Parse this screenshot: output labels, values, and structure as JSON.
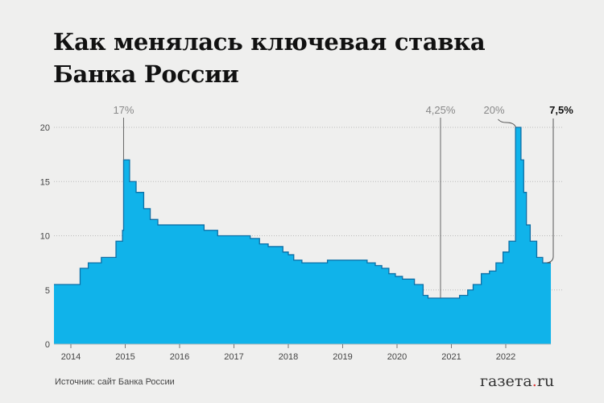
{
  "title": {
    "line1": "Как менялась ключевая ставка",
    "line2": "Банка России"
  },
  "source": "Источник: сайт Банка России",
  "logo": {
    "pre": "газета",
    "dot": ".",
    "post": "ru"
  },
  "colors": {
    "fill": "#10b3ea",
    "stroke": "#0d6fa6",
    "background": "#efefee",
    "grid": "#bbbbbb",
    "annotation": "#888888"
  },
  "annotations": [
    {
      "label": "17%",
      "x_year": 2014.97,
      "value": 17
    },
    {
      "label": "4,25%",
      "x_year": 2020.8,
      "value": 4.25
    },
    {
      "label": "20%",
      "x_year": 2022.2,
      "value": 20
    },
    {
      "label": "7,5%",
      "x_year": 2022.75,
      "value": 7.5,
      "bold": true
    }
  ],
  "chart_data": {
    "type": "area",
    "title": "Как менялась ключевая ставка Банка России",
    "xlabel": "",
    "ylabel": "",
    "ylim": [
      0,
      20
    ],
    "yticks": [
      0,
      5,
      10,
      15,
      20
    ],
    "xticks": [
      "2014",
      "2015",
      "2016",
      "2017",
      "2018",
      "2019",
      "2020",
      "2021",
      "2022"
    ],
    "grid": true,
    "step": true,
    "points": [
      {
        "x": 2013.7,
        "y": 5.5
      },
      {
        "x": 2014.17,
        "y": 7.0
      },
      {
        "x": 2014.32,
        "y": 7.5
      },
      {
        "x": 2014.56,
        "y": 8.0
      },
      {
        "x": 2014.83,
        "y": 9.5
      },
      {
        "x": 2014.95,
        "y": 10.5
      },
      {
        "x": 2014.97,
        "y": 17.0
      },
      {
        "x": 2015.08,
        "y": 15.0
      },
      {
        "x": 2015.2,
        "y": 14.0
      },
      {
        "x": 2015.34,
        "y": 12.5
      },
      {
        "x": 2015.46,
        "y": 11.5
      },
      {
        "x": 2015.6,
        "y": 11.0
      },
      {
        "x": 2016.45,
        "y": 10.5
      },
      {
        "x": 2016.7,
        "y": 10.0
      },
      {
        "x": 2017.3,
        "y": 9.75
      },
      {
        "x": 2017.47,
        "y": 9.25
      },
      {
        "x": 2017.63,
        "y": 9.0
      },
      {
        "x": 2017.9,
        "y": 8.5
      },
      {
        "x": 2018.0,
        "y": 8.25
      },
      {
        "x": 2018.1,
        "y": 7.75
      },
      {
        "x": 2018.25,
        "y": 7.5
      },
      {
        "x": 2018.7,
        "y": 7.5
      },
      {
        "x": 2018.72,
        "y": 7.75
      },
      {
        "x": 2018.97,
        "y": 7.75
      },
      {
        "x": 2019.45,
        "y": 7.5
      },
      {
        "x": 2019.6,
        "y": 7.25
      },
      {
        "x": 2019.72,
        "y": 7.0
      },
      {
        "x": 2019.85,
        "y": 6.5
      },
      {
        "x": 2019.97,
        "y": 6.25
      },
      {
        "x": 2020.1,
        "y": 6.0
      },
      {
        "x": 2020.32,
        "y": 5.5
      },
      {
        "x": 2020.48,
        "y": 4.5
      },
      {
        "x": 2020.57,
        "y": 4.25
      },
      {
        "x": 2021.15,
        "y": 4.5
      },
      {
        "x": 2021.3,
        "y": 5.0
      },
      {
        "x": 2021.4,
        "y": 5.5
      },
      {
        "x": 2021.55,
        "y": 6.5
      },
      {
        "x": 2021.7,
        "y": 6.75
      },
      {
        "x": 2021.82,
        "y": 7.5
      },
      {
        "x": 2021.95,
        "y": 8.5
      },
      {
        "x": 2022.06,
        "y": 9.5
      },
      {
        "x": 2022.18,
        "y": 20.0
      },
      {
        "x": 2022.28,
        "y": 17.0
      },
      {
        "x": 2022.33,
        "y": 14.0
      },
      {
        "x": 2022.38,
        "y": 11.0
      },
      {
        "x": 2022.45,
        "y": 9.5
      },
      {
        "x": 2022.57,
        "y": 8.0
      },
      {
        "x": 2022.68,
        "y": 7.5
      },
      {
        "x": 2022.83,
        "y": 7.5
      }
    ]
  }
}
